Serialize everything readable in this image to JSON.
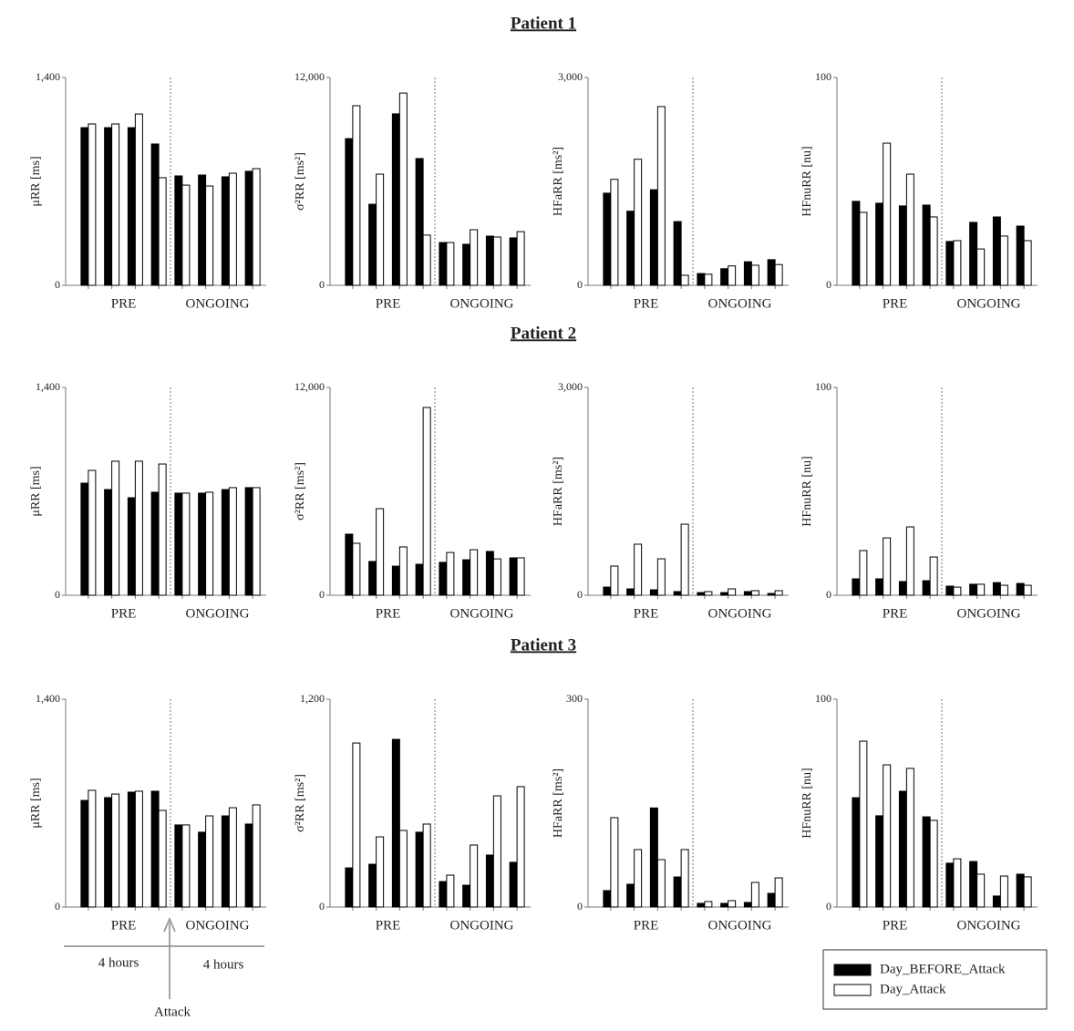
{
  "chart_data": {
    "type": "bar",
    "series": [
      {
        "name": "Day_BEFORE_Attack",
        "color": "#000000"
      },
      {
        "name": "Day_Attack",
        "color": "#ffffff"
      }
    ],
    "group_labels": [
      "PRE",
      "ONGOING"
    ],
    "rows": [
      {
        "title": "Patient 1",
        "panels": [
          {
            "ylabel": "μRR [ms]",
            "ylim": [
              0,
              1400
            ],
            "yticks": [
              0,
              {
                "value": 1400,
                "label": "1,400"
              }
            ],
            "values": [
              [
                1062,
                1062,
                1062,
                952,
                737,
                743,
                731,
                768
              ],
              [
                1087,
                1087,
                1154,
                725,
                675,
                669,
                755,
                786
              ]
            ]
          },
          {
            "ylabel": "σ²RR [ms²]",
            "ylim": [
              0,
              12000
            ],
            "yticks": [
              0,
              {
                "value": 12000,
                "label": "12,000"
              }
            ],
            "values": [
              [
                8470,
                4680,
                9900,
                7320,
                2470,
                2370,
                2840,
                2740
              ],
              [
                10370,
                6420,
                11100,
                2900,
                2470,
                3210,
                2790,
                3100
              ]
            ]
          },
          {
            "ylabel": "HFaRR [ms²]",
            "ylim": [
              0,
              3000
            ],
            "yticks": [
              0,
              {
                "value": 3000,
                "label": "3,000"
              }
            ],
            "values": [
              [
                1330,
                1070,
                1380,
                920,
                170,
                240,
                340,
                370
              ],
              [
                1530,
                1820,
                2580,
                145,
                160,
                280,
                290,
                300
              ]
            ]
          },
          {
            "ylabel": "HFnuRR [nu]",
            "ylim": [
              0,
              100
            ],
            "yticks": [
              0,
              100
            ],
            "values": [
              [
                40.4,
                39.5,
                38.2,
                38.6,
                21.1,
                30.3,
                32.9,
                28.5
              ],
              [
                35.1,
                68.4,
                53.5,
                32.9,
                21.5,
                17.5,
                23.7,
                21.5
              ]
            ]
          }
        ]
      },
      {
        "title": "Patient 2",
        "panels": [
          {
            "ylabel": "μRR [ms]",
            "ylim": [
              0,
              1400
            ],
            "yticks": [
              0,
              {
                "value": 1400,
                "label": "1,400"
              }
            ],
            "values": [
              [
                755,
                712,
                657,
                694,
                688,
                688,
                712,
                725
              ],
              [
                841,
                903,
                903,
                884,
                688,
                694,
                725,
                725
              ]
            ]
          },
          {
            "ylabel": "σ²RR [ms²]",
            "ylim": [
              0,
              12000
            ],
            "yticks": [
              0,
              {
                "value": 12000,
                "label": "12,000"
              }
            ],
            "values": [
              [
                3530,
                1950,
                1680,
                1790,
                1900,
                2050,
                2530,
                2160
              ],
              [
                3000,
                5000,
                2790,
                10840,
                2470,
                2630,
                2100,
                2160
              ]
            ]
          },
          {
            "ylabel": "HFaRR [ms²]",
            "ylim": [
              0,
              3000
            ],
            "yticks": [
              0,
              {
                "value": 3000,
                "label": "3,000"
              }
            ],
            "values": [
              [
                118,
                92,
                79,
                53,
                39,
                39,
                53,
                26
              ],
              [
                421,
                737,
                526,
                1026,
                53,
                92,
                66,
                66
              ]
            ]
          },
          {
            "ylabel": "HFnuRR [nu]",
            "ylim": [
              0,
              100
            ],
            "yticks": [
              0,
              100
            ],
            "values": [
              [
                7.9,
                7.9,
                6.6,
                7.0,
                4.4,
                5.3,
                6.1,
                5.7
              ],
              [
                21.5,
                27.6,
                32.9,
                18.4,
                3.9,
                5.3,
                4.8,
                4.8
              ]
            ]
          }
        ]
      },
      {
        "title": "Patient 3",
        "panels": [
          {
            "ylabel": "μRR [ms]",
            "ylim": [
              0,
              1400
            ],
            "yticks": [
              0,
              {
                "value": 1400,
                "label": "1,400"
              }
            ],
            "values": [
              [
                718,
                737,
                774,
                780,
                553,
                504,
                614,
                559
              ],
              [
                786,
                761,
                780,
                651,
                553,
                614,
                669,
                688
              ]
            ]
          },
          {
            "ylabel": "σ²RR [ms²]",
            "ylim": [
              0,
              1200
            ],
            "yticks": [
              0,
              {
                "value": 1200,
                "label": "1,200"
              }
            ],
            "values": [
              [
                226,
                247,
                968,
                432,
                147,
                126,
                300,
                258
              ],
              [
                947,
                405,
                442,
                479,
                184,
                358,
                642,
                695
              ]
            ]
          },
          {
            "ylabel": "HFaRR [ms²]",
            "ylim": [
              0,
              300
            ],
            "yticks": [
              0,
              300
            ],
            "values": [
              [
                23.7,
                32.9,
                143,
                43.4,
                5.3,
                5.3,
                6.6,
                19.7
              ],
              [
                129,
                82.9,
                68.4,
                82.9,
                7.9,
                9.2,
                35.5,
                42.1
              ]
            ]
          },
          {
            "ylabel": "HFnuRR [nu]",
            "ylim": [
              0,
              100
            ],
            "yticks": [
              0,
              100
            ],
            "values": [
              [
                52.6,
                43.9,
                55.7,
                43.4,
                21.1,
                21.9,
                5.3,
                15.8
              ],
              [
                79.8,
                68.4,
                66.7,
                41.7,
                23.2,
                15.8,
                14.9,
                14.5
              ]
            ]
          }
        ]
      }
    ]
  },
  "annotations": {
    "left_span": "4 hours",
    "right_span": "4 hours",
    "event": "Attack"
  }
}
